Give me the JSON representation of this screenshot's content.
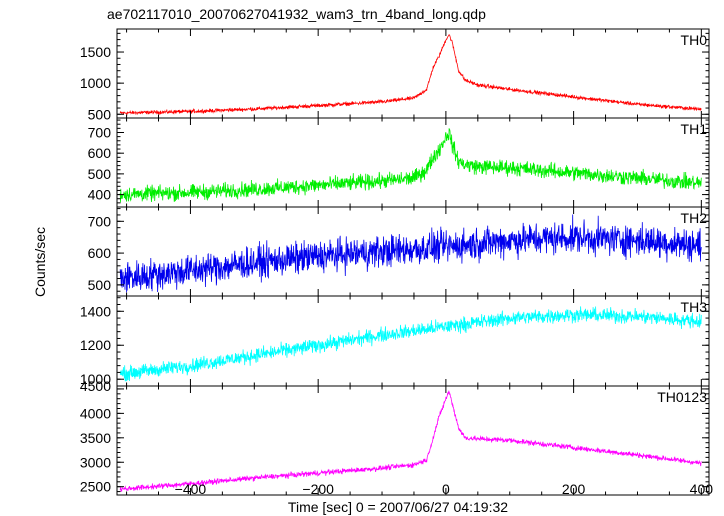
{
  "chart_data": {
    "type": "line",
    "title": "ae702117010_20070627041932_wam3_trn_4band_long.qdp",
    "xlabel": "Time [sec] 0 = 2007/06/27 04:19:32",
    "ylabel": "Counts/sec",
    "xlim": [
      -515,
      412
    ],
    "xticks": [
      -400,
      -200,
      0,
      200,
      400
    ],
    "xtick_labels": [
      "−400",
      "−200",
      "0",
      "200",
      "400"
    ],
    "grid": false,
    "panels": [
      {
        "name": "TH0",
        "color": "#ff0000",
        "ylim": [
          440,
          1870
        ],
        "yticks": [
          500,
          1000,
          1500
        ],
        "noise": 22,
        "x": [
          -510,
          -400,
          -300,
          -200,
          -100,
          -50,
          -30,
          -20,
          -10,
          0,
          5,
          10,
          20,
          30,
          50,
          100,
          200,
          300,
          400
        ],
        "y": [
          520,
          545,
          585,
          640,
          700,
          760,
          900,
          1250,
          1450,
          1700,
          1780,
          1650,
          1200,
          1050,
          970,
          900,
          780,
          660,
          580
        ]
      },
      {
        "name": "TH1",
        "color": "#00ee00",
        "ylim": [
          340,
          770
        ],
        "yticks": [
          400,
          500,
          600,
          700
        ],
        "noise": 28,
        "x": [
          -510,
          -400,
          -300,
          -200,
          -100,
          -50,
          -30,
          -20,
          -10,
          0,
          5,
          10,
          20,
          30,
          50,
          100,
          200,
          300,
          400
        ],
        "y": [
          400,
          410,
          425,
          445,
          465,
          480,
          520,
          580,
          620,
          680,
          700,
          640,
          560,
          545,
          535,
          530,
          505,
          480,
          455
        ]
      },
      {
        "name": "TH2",
        "color": "#0000ee",
        "ylim": [
          465,
          745
        ],
        "yticks": [
          500,
          600,
          700
        ],
        "noise": 38,
        "x": [
          -510,
          -400,
          -300,
          -200,
          -100,
          0,
          100,
          200,
          300,
          400
        ],
        "y": [
          520,
          545,
          570,
          590,
          605,
          620,
          640,
          650,
          640,
          625
        ]
      },
      {
        "name": "TH3",
        "color": "#00ffff",
        "ylim": [
          960,
          1490
        ],
        "yticks": [
          1000,
          1200,
          1400
        ],
        "noise": 32,
        "x": [
          -510,
          -400,
          -300,
          -200,
          -100,
          0,
          100,
          200,
          300,
          400
        ],
        "y": [
          1030,
          1080,
          1140,
          1200,
          1260,
          1310,
          1360,
          1380,
          1370,
          1340
        ]
      },
      {
        "name": "TH0123",
        "color": "#ff00ff",
        "ylim": [
          2330,
          4560
        ],
        "yticks": [
          2500,
          3000,
          3500,
          4000,
          4500
        ],
        "ytick_labels_shown": [
          "2500",
          "3000",
          "3500",
          "4000"
        ],
        "noise": 40,
        "x": [
          -510,
          -400,
          -300,
          -200,
          -100,
          -50,
          -30,
          -20,
          -10,
          0,
          5,
          10,
          20,
          30,
          50,
          100,
          200,
          300,
          400
        ],
        "y": [
          2450,
          2560,
          2680,
          2780,
          2880,
          2950,
          3050,
          3500,
          3950,
          4300,
          4450,
          4200,
          3700,
          3500,
          3480,
          3450,
          3300,
          3150,
          2980
        ]
      }
    ],
    "bottom_panel_top_label": "4500"
  }
}
